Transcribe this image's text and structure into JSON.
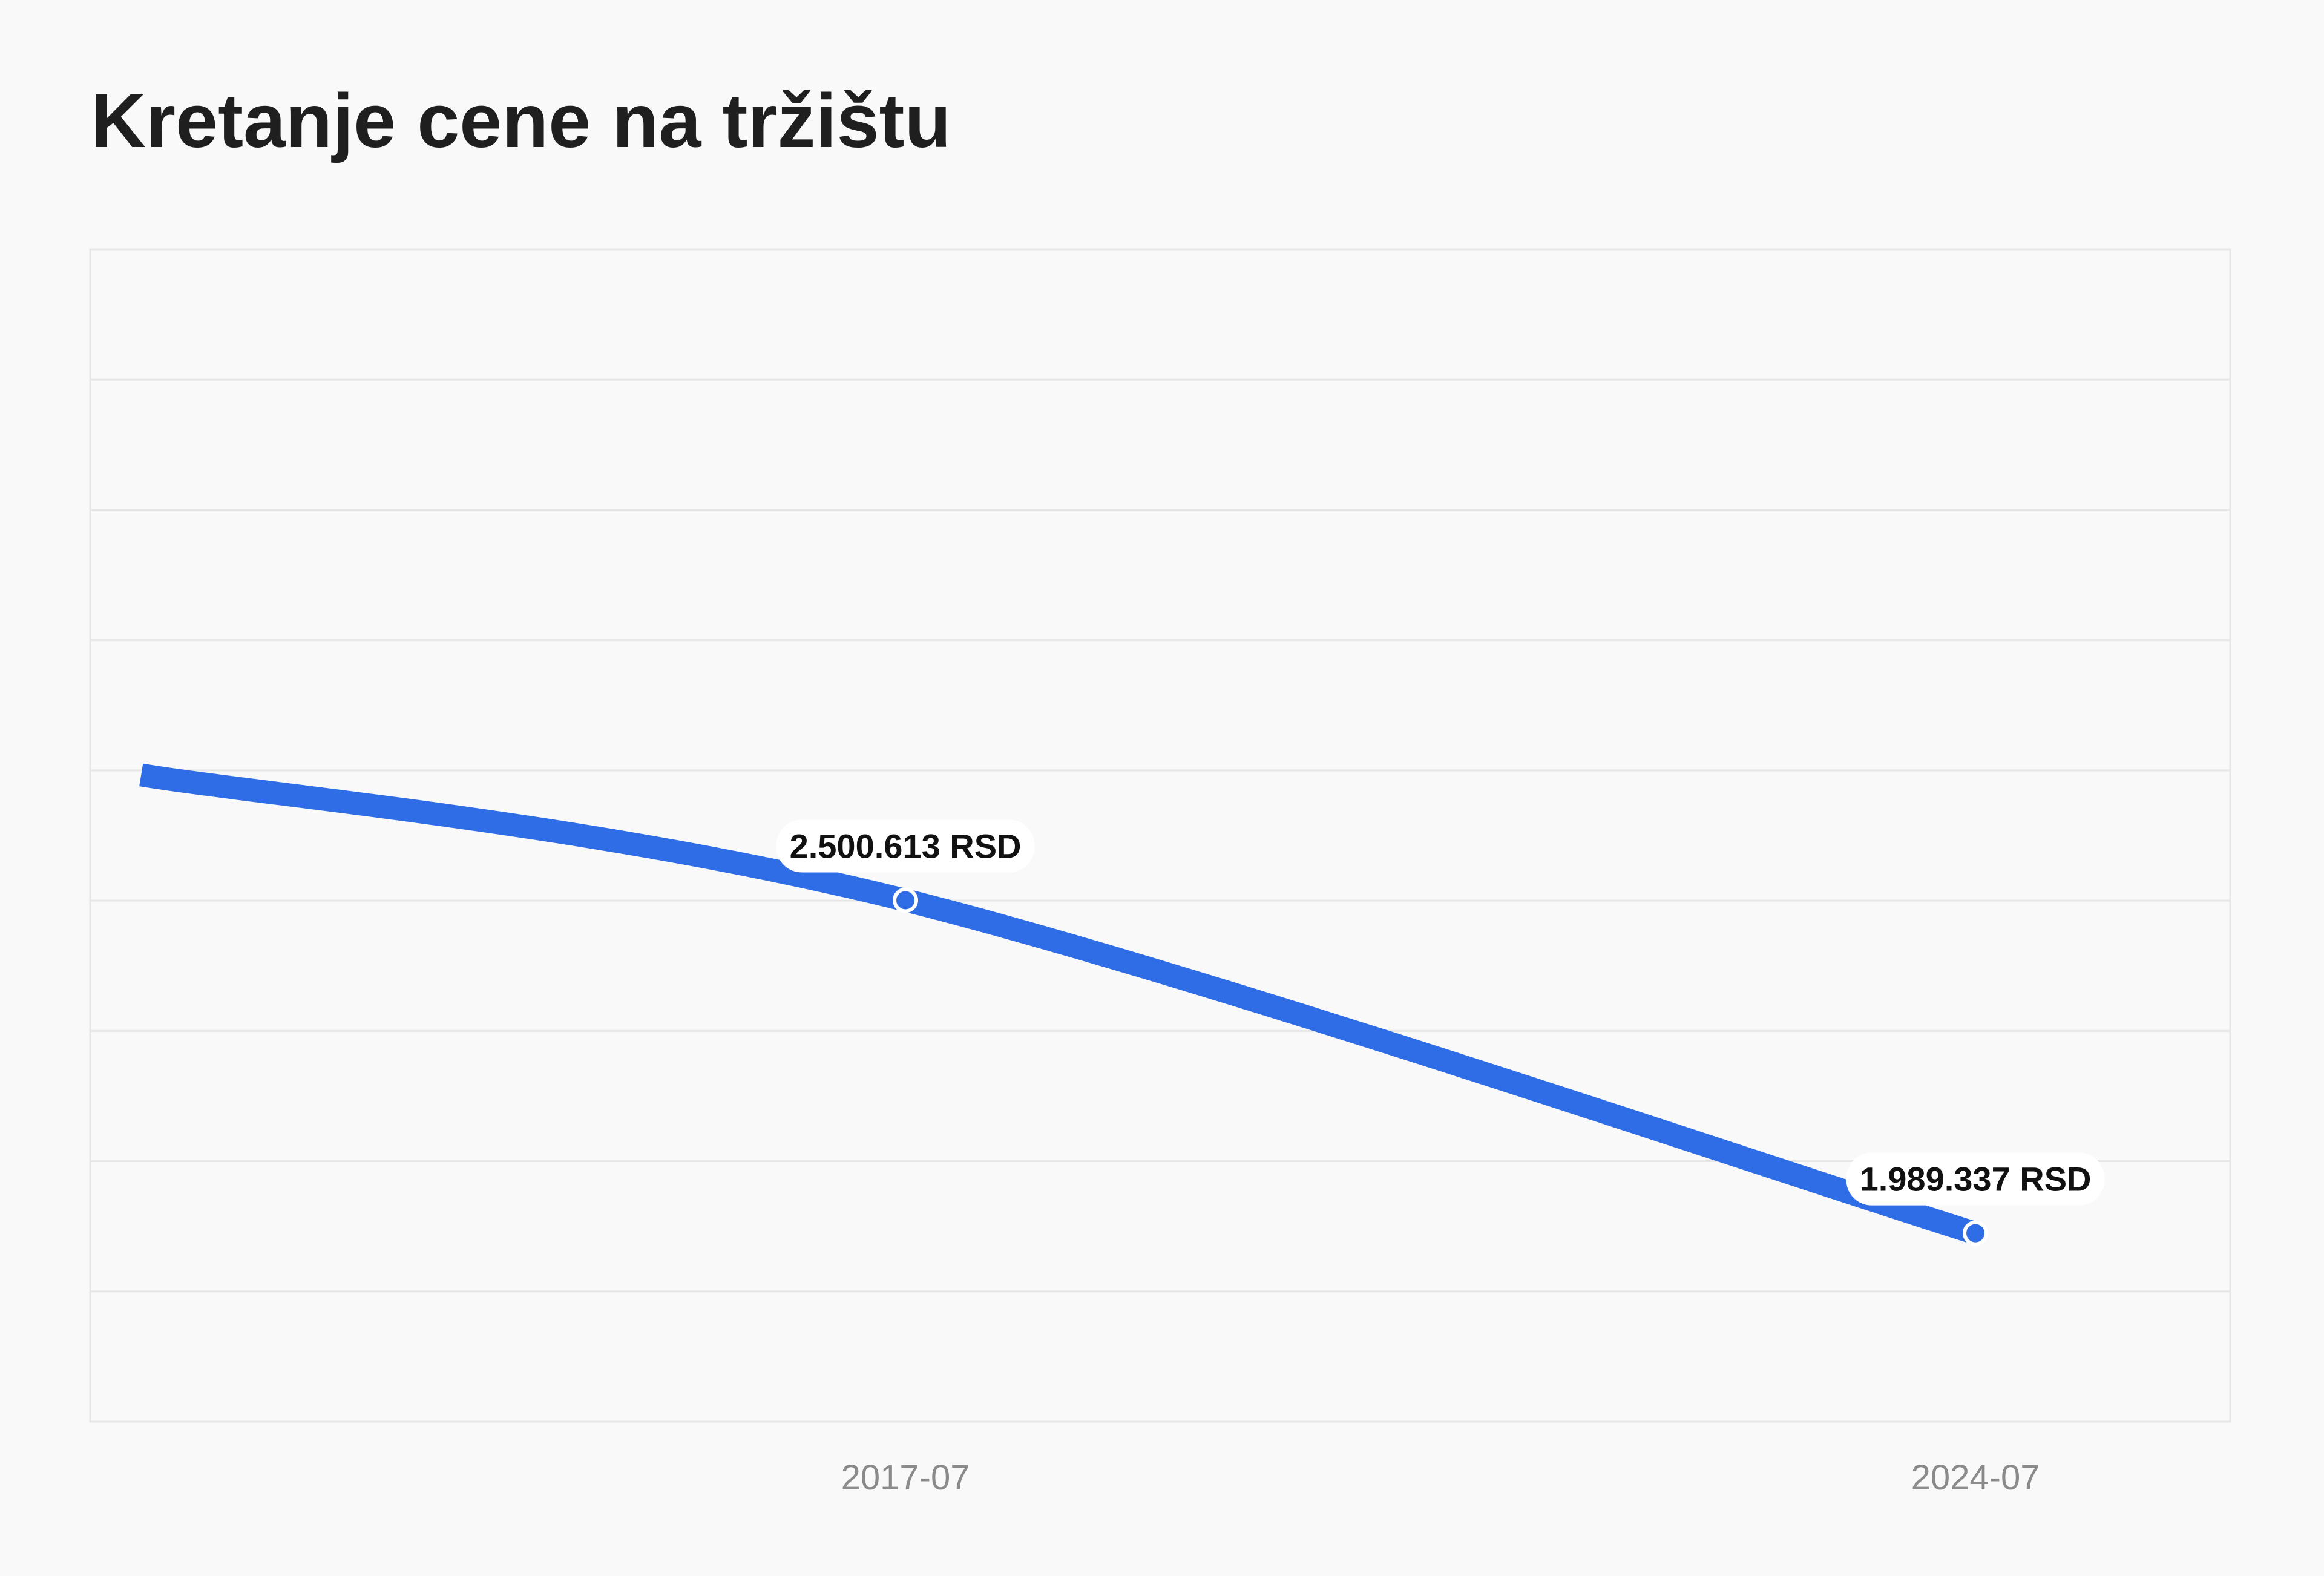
{
  "page": {
    "title": "Kretanje cene na tržištu"
  },
  "colors": {
    "background": "#f9f9f9",
    "line": "#2f6de6",
    "grid": "#e6e6e6",
    "title": "#1f1f1f",
    "tick_label": "#8a8a8a"
  },
  "chart_data": {
    "type": "line",
    "title": "",
    "xlabel": "",
    "ylabel": "",
    "grid": true,
    "legend": "none",
    "x": [
      "2012-07",
      "2017-07",
      "2024-07"
    ],
    "xlim": [
      "2012-03",
      "2026-03"
    ],
    "ylim": [
      1700000,
      3500000
    ],
    "x_ticks": [
      "2017-07",
      "2024-07"
    ],
    "series": [
      {
        "values": [
          2693000,
          2500613,
          1989337
        ],
        "color": "#2f6de6",
        "marked_points": [
          {
            "x": "2017-07",
            "y": 2500613,
            "label": "2.500.613 RSD"
          },
          {
            "x": "2024-07",
            "y": 1989337,
            "label": "1.989.337 RSD"
          }
        ]
      }
    ]
  }
}
